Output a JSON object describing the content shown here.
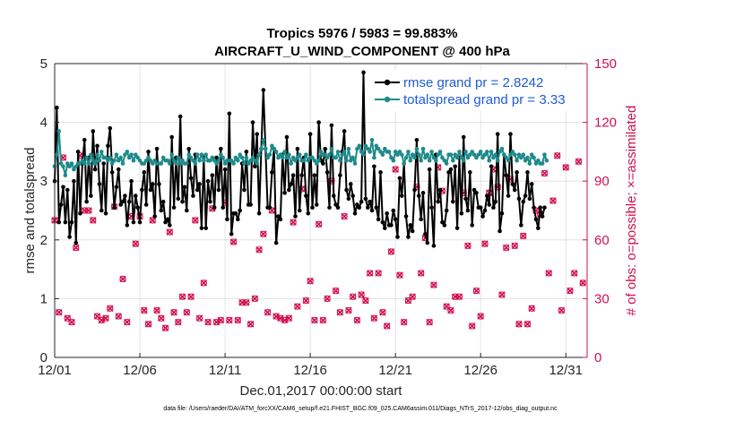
{
  "chart_data": {
    "type": "line",
    "title": "Tropics 5976 / 5983 = 99.883%",
    "subtitle": "AIRCRAFT_U_WIND_COMPONENT @ 400 hPa",
    "xlabel": "Dec.01,2017 00:00:00 start",
    "ylabel": "rmse and totalspread",
    "y2label": "# of obs: o=possible; ×=assimilated",
    "footer": "data file: /Users/raeder/DAI/ATM_forcXX/CAM6_setup/f.e21.FHIST_BGC.f09_025.CAM6assim.011/Diags_NTrS_2017-12/obs_diag_output.nc",
    "xlim": [
      0,
      31.25
    ],
    "ylim": [
      0,
      5
    ],
    "y2lim": [
      0,
      150
    ],
    "x_ticks": [
      {
        "value": 0,
        "label": "12/01"
      },
      {
        "value": 5,
        "label": "12/06"
      },
      {
        "value": 10,
        "label": "12/11"
      },
      {
        "value": 15,
        "label": "12/16"
      },
      {
        "value": 20,
        "label": "12/21"
      },
      {
        "value": 25,
        "label": "12/26"
      },
      {
        "value": 30,
        "label": "12/31"
      }
    ],
    "y_ticks": [
      "0",
      "1",
      "2",
      "3",
      "4",
      "5"
    ],
    "y2_ticks": [
      "0",
      "30",
      "60",
      "90",
      "120",
      "150"
    ],
    "grid": true,
    "legend_position": "top-right",
    "series": [
      {
        "name": "rmse grand pr = 2.8242",
        "color": "#000000",
        "axis": "left",
        "values": [
          3.0,
          4.25,
          2.3,
          2.6,
          2.9,
          2.3,
          2.85,
          2.05,
          2.3,
          3.0,
          1.95,
          3.5,
          2.45,
          3.3,
          3.7,
          2.65,
          3.4,
          2.75,
          3.85,
          3.2,
          3.6,
          2.95,
          2.5,
          3.3,
          2.45,
          3.6,
          3.9,
          3.15,
          2.55,
          2.9,
          3.2,
          2.6,
          2.65,
          2.75,
          2.25,
          2.65,
          3.0,
          2.3,
          2.75,
          2.55,
          2.3,
          2.85,
          3.15,
          2.6,
          3.5,
          2.85,
          2.95,
          2.4,
          3.55,
          2.95,
          2.5,
          2.65,
          2.3,
          2.35,
          2.25,
          3.75,
          2.55,
          3.4,
          2.7,
          4.1,
          2.65,
          2.9,
          2.5,
          3.55,
          3.05,
          2.75,
          3.45,
          2.85,
          2.95,
          2.2,
          3.4,
          2.2,
          3.0,
          2.65,
          3.1,
          2.55,
          3.4,
          2.85,
          3.55,
          2.55,
          3.2,
          2.35,
          4.15,
          2.1,
          2.45,
          2.45,
          2.35,
          2.5,
          3.3,
          2.85,
          3.5,
          2.6,
          2.6,
          4.0,
          3.25,
          3.8,
          2.45,
          3.55,
          4.55,
          3.55,
          2.55,
          2.55,
          3.15,
          3.55,
          1.95,
          2.4,
          2.35,
          3.45,
          2.8,
          3.75,
          2.85,
          2.95,
          3.1,
          2.4,
          3.55,
          2.5,
          3.1,
          3.4,
          2.75,
          2.45,
          3.8,
          2.55,
          3.1,
          2.6,
          4.0,
          3.35,
          3.3,
          3.55,
          3.15,
          2.55,
          3.95,
          2.75,
          2.6,
          2.55,
          3.1,
          3.5,
          3.85,
          2.85,
          2.7,
          2.95,
          2.75,
          2.45,
          2.6,
          2.55,
          2.65,
          4.85,
          2.7,
          2.55,
          2.65,
          2.5,
          3.25,
          2.55,
          2.35,
          3.15,
          2.3,
          2.2,
          2.45,
          2.25,
          2.25,
          2.5,
          2.35,
          2.05,
          3.05,
          2.75,
          3.3,
          2.4,
          2.05,
          2.25,
          2.15,
          2.85,
          3.7,
          2.75,
          2.35,
          2.8,
          2.1,
          1.95,
          3.2,
          2.55,
          1.9,
          3.45,
          2.65,
          2.85,
          2.3,
          2.25,
          2.5,
          3.15,
          3.2,
          2.65,
          3.25,
          2.2,
          3.4,
          2.45,
          3.75,
          2.7,
          2.5,
          3.15,
          2.25,
          2.85,
          2.8,
          2.55,
          2.55,
          2.4,
          2.5,
          2.75,
          2.6,
          3.25,
          2.55,
          2.65,
          3.8,
          2.15,
          2.45,
          3.45,
          3.1,
          2.75,
          3.8,
          2.95,
          2.85,
          3.15,
          2.7,
          2.25,
          2.65,
          2.75,
          3.15,
          2.7,
          2.95,
          2.55,
          2.35,
          2.2,
          2.55,
          2.4,
          2.55
        ]
      },
      {
        "name": "totalspread grand pr = 3.33",
        "color": "#1e8a8a",
        "axis": "left",
        "values": [
          3.25,
          3.45,
          3.85,
          3.3,
          3.25,
          3.1,
          3.3,
          3.25,
          3.3,
          3.2,
          3.25,
          3.3,
          3.3,
          3.35,
          3.3,
          3.4,
          3.3,
          3.45,
          3.35,
          3.3,
          3.45,
          3.35,
          3.5,
          3.4,
          3.4,
          3.35,
          3.4,
          3.3,
          3.35,
          3.45,
          3.35,
          3.4,
          3.3,
          3.45,
          3.5,
          3.4,
          3.45,
          3.35,
          3.45,
          3.4,
          3.35,
          3.3,
          3.3,
          3.35,
          3.4,
          3.35,
          3.3,
          3.35,
          3.3,
          3.3,
          3.3,
          3.4,
          3.35,
          3.35,
          3.3,
          3.45,
          3.35,
          3.3,
          3.4,
          3.3,
          3.35,
          3.3,
          3.3,
          3.45,
          3.4,
          3.35,
          3.3,
          3.45,
          3.35,
          3.45,
          3.35,
          3.45,
          3.35,
          3.35,
          3.4,
          3.35,
          3.3,
          3.35,
          3.45,
          3.4,
          3.3,
          3.35,
          3.35,
          3.35,
          3.3,
          3.4,
          3.35,
          3.45,
          3.4,
          3.3,
          3.4,
          3.3,
          3.35,
          3.4,
          3.35,
          3.3,
          3.45,
          3.55,
          3.7,
          3.55,
          3.4,
          3.45,
          3.6,
          3.55,
          3.5,
          3.4,
          3.45,
          3.4,
          3.5,
          3.4,
          3.45,
          3.3,
          3.4,
          3.35,
          3.4,
          3.45,
          3.35,
          3.35,
          3.45,
          3.35,
          3.4,
          3.4,
          3.35,
          3.3,
          3.35,
          3.5,
          3.45,
          3.45,
          3.4,
          3.45,
          3.55,
          3.4,
          3.4,
          3.5,
          3.35,
          3.45,
          3.5,
          3.35,
          3.55,
          3.35,
          3.4,
          3.3,
          3.55,
          3.6,
          3.5,
          3.45,
          3.6,
          3.55,
          3.5,
          3.7,
          3.4,
          3.6,
          3.55,
          3.5,
          3.45,
          3.55,
          3.5,
          3.5,
          3.4,
          3.35,
          3.5,
          3.45,
          3.5,
          3.45,
          3.3,
          3.4,
          3.5,
          3.35,
          3.45,
          3.4,
          3.55,
          3.45,
          3.35,
          3.55,
          3.4,
          3.45,
          3.35,
          3.5,
          3.4,
          3.35,
          3.45,
          3.5,
          3.4,
          3.35,
          3.3,
          3.45,
          3.45,
          3.35,
          3.45,
          3.4,
          3.5,
          3.4,
          3.35,
          3.5,
          3.4,
          3.45,
          3.5,
          3.45,
          3.4,
          3.45,
          3.5,
          3.4,
          3.45,
          3.5,
          3.35,
          3.5,
          3.4,
          3.45,
          3.35,
          3.5,
          3.55,
          3.45,
          3.4,
          3.35,
          3.45,
          3.5,
          3.45,
          3.35,
          3.45,
          3.4,
          3.45,
          3.35,
          3.4,
          3.3,
          3.45,
          3.4,
          3.3,
          3.35,
          3.3,
          3.3,
          3.45,
          3.35
        ]
      },
      {
        "name": "# obs possible",
        "color": "#d0104c",
        "axis": "right",
        "marker": "o",
        "values": [
          70,
          12,
          23,
          67,
          102,
          41,
          20,
          17,
          18,
          78,
          56,
          15,
          103,
          76,
          75,
          19,
          75,
          74,
          70,
          18,
          21,
          57,
          19,
          22,
          20,
          17,
          25,
          79,
          77,
          76,
          21,
          23,
          40,
          16,
          18,
          21,
          72,
          24,
          58,
          23,
          72,
          78,
          24,
          23,
          17,
          71,
          70,
          18,
          24,
          42,
          20,
          25,
          15,
          18,
          64,
          22,
          23,
          37,
          18,
          71,
          31,
          32,
          23,
          69,
          31,
          69,
          70,
          19,
          20,
          85,
          38,
          17,
          18,
          73,
          76,
          74,
          18,
          19,
          19,
          77,
          79,
          71,
          19,
          76,
          59,
          18,
          19,
          64,
          28,
          75,
          28,
          69,
          17,
          66,
          30,
          20,
          55,
          18,
          63,
          21,
          23,
          70,
          75,
          18,
          21,
          61,
          20,
          79,
          19,
          71,
          20,
          62,
          69,
          20,
          26,
          19,
          86,
          16,
          29,
          63,
          39,
          22,
          19,
          23,
          68,
          21,
          19,
          23,
          30,
          30,
          90,
          45,
          34,
          66,
          23,
          16,
          72,
          94,
          24,
          68,
          31,
          74,
          19,
          103,
          32,
          61,
          29,
          48,
          43,
          19,
          20,
          14,
          43,
          28,
          23,
          20,
          16,
          30,
          54,
          87,
          96,
          28,
          42,
          63,
          18,
          31,
          29,
          54,
          31,
          19,
          87,
          40,
          43,
          61,
          61,
          18,
          18,
          16,
          37,
          20,
          97,
          94,
          85,
          32,
          26,
          97,
          24,
          52,
          31,
          94,
          31,
          57,
          84,
          31,
          57,
          78,
          16,
          21,
          34,
          25,
          21,
          18,
          58,
          23,
          84,
          32,
          96,
          43,
          87,
          97,
          32,
          62,
          56,
          17,
          91,
          106,
          57,
          106,
          17,
          106,
          62,
          86,
          17,
          73,
          25,
          23,
          75,
          95,
          73,
          73,
          94,
          105,
          43,
          105,
          80,
          57,
          103,
          32,
          24,
          70,
          97,
          73,
          34,
          17,
          43,
          55,
          100,
          19,
          38,
          86
        ]
      },
      {
        "name": "# obs assimilated",
        "color": "#d0104c",
        "axis": "right",
        "marker": "x",
        "values": [
          70,
          12,
          23,
          67,
          102,
          41,
          20,
          17,
          18,
          78,
          56,
          15,
          103,
          76,
          75,
          19,
          75,
          74,
          70,
          18,
          21,
          57,
          19,
          22,
          20,
          17,
          25,
          79,
          77,
          76,
          21,
          23,
          40,
          16,
          18,
          21,
          72,
          24,
          58,
          23,
          72,
          78,
          24,
          23,
          17,
          71,
          70,
          18,
          24,
          42,
          20,
          25,
          15,
          18,
          64,
          22,
          23,
          37,
          18,
          71,
          31,
          32,
          23,
          69,
          31,
          69,
          70,
          19,
          20,
          85,
          38,
          17,
          18,
          73,
          76,
          74,
          18,
          19,
          19,
          77,
          79,
          71,
          19,
          76,
          59,
          18,
          19,
          64,
          28,
          75,
          28,
          69,
          17,
          66,
          30,
          20,
          55,
          18,
          63,
          21,
          23,
          70,
          75,
          18,
          21,
          61,
          20,
          79,
          19,
          71,
          20,
          62,
          69,
          20,
          26,
          19,
          86,
          16,
          29,
          63,
          39,
          22,
          19,
          23,
          68,
          21,
          19,
          23,
          30,
          30,
          90,
          45,
          34,
          66,
          23,
          16,
          72,
          94,
          24,
          68,
          31,
          74,
          19,
          103,
          32,
          61,
          29,
          48,
          43,
          19,
          20,
          14,
          43,
          28,
          23,
          20,
          16,
          30,
          54,
          87,
          96,
          28,
          42,
          63,
          18,
          31,
          29,
          54,
          31,
          19,
          87,
          40,
          43,
          61,
          61,
          18,
          18,
          16,
          37,
          20,
          97,
          94,
          85,
          32,
          26,
          97,
          24,
          52,
          31,
          94,
          31,
          57,
          84,
          31,
          57,
          78,
          16,
          21,
          34,
          25,
          21,
          18,
          58,
          23,
          84,
          32,
          96,
          43,
          87,
          97,
          32,
          62,
          56,
          17,
          91,
          106,
          57,
          106,
          17,
          106,
          62,
          86,
          17,
          73,
          25,
          23,
          75,
          95,
          73,
          73,
          94,
          105,
          43,
          105,
          80,
          57,
          103,
          32,
          24,
          70,
          97,
          73,
          34,
          17,
          43,
          55,
          100,
          19,
          38,
          86
        ]
      }
    ]
  }
}
